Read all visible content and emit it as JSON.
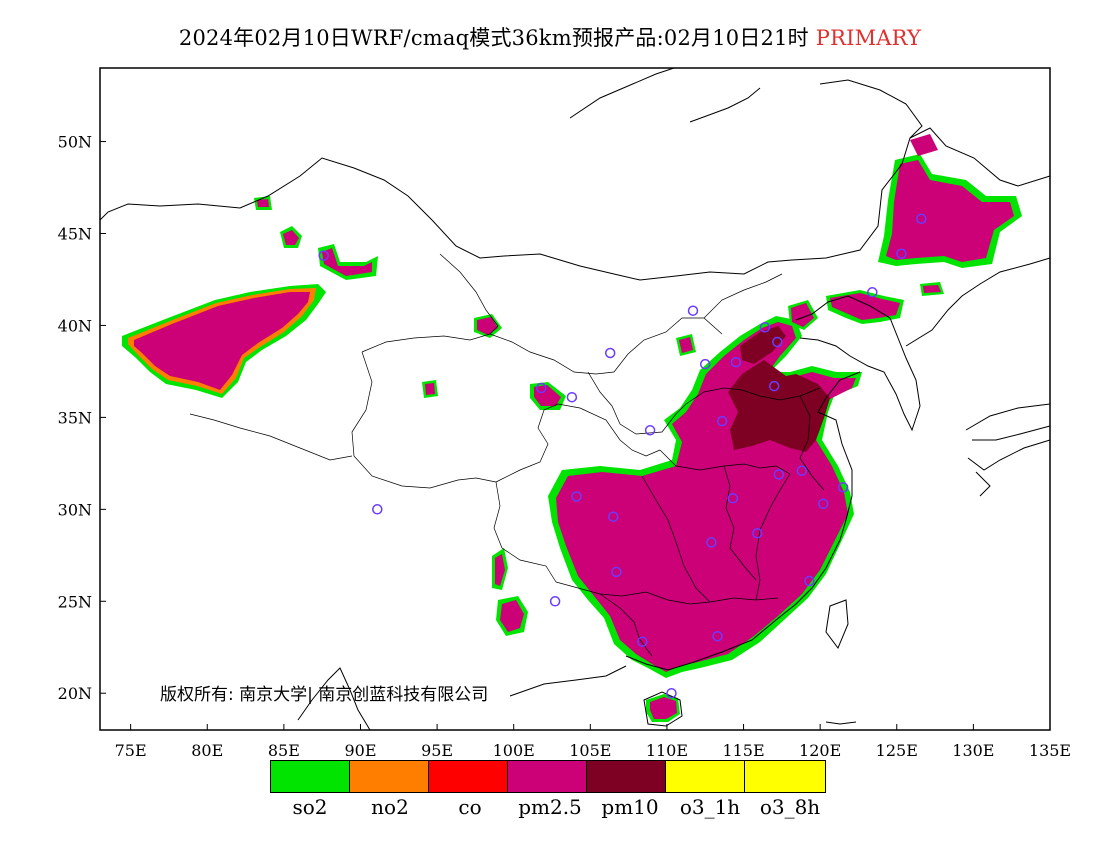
{
  "header": {
    "title_main": "2024年02月10日WRF/cmaq模式36km预报产品:02月10日21时",
    "title_tag": "PRIMARY"
  },
  "copyright": "版权所有: 南京大学| 南京创蓝科技有限公司",
  "axes": {
    "x_ticks": [
      "75E",
      "80E",
      "85E",
      "90E",
      "95E",
      "100E",
      "105E",
      "110E",
      "115E",
      "120E",
      "125E",
      "130E",
      "135E"
    ],
    "y_ticks": [
      "20N",
      "25N",
      "30N",
      "35N",
      "40N",
      "45N",
      "50N"
    ]
  },
  "legend": [
    {
      "label": "so2",
      "color": "#00e400"
    },
    {
      "label": "no2",
      "color": "#ff7e00"
    },
    {
      "label": "co",
      "color": "#ff0000"
    },
    {
      "label": "pm2.5",
      "color": "#cc0077"
    },
    {
      "label": "pm10",
      "color": "#7e0023"
    },
    {
      "label": "o3_1h",
      "color": "#ffff00"
    },
    {
      "label": "o3_8h",
      "color": "#ffff00"
    }
  ],
  "map": {
    "lon_range": [
      73,
      135
    ],
    "lat_range": [
      18,
      54
    ],
    "primary_pollutant_regions": [
      {
        "name": "Tarim basin",
        "pollutant": "pm2.5"
      },
      {
        "name": "Northeast plain",
        "pollutant": "pm2.5"
      },
      {
        "name": "Eastern and southern China",
        "pollutant": "pm2.5"
      },
      {
        "name": "North China plain core",
        "pollutant": "pm10"
      }
    ],
    "stations": [
      {
        "lon": 91.1,
        "lat": 30.0
      },
      {
        "lon": 87.6,
        "lat": 43.8
      },
      {
        "lon": 101.8,
        "lat": 36.6
      },
      {
        "lon": 103.8,
        "lat": 36.1
      },
      {
        "lon": 106.3,
        "lat": 38.5
      },
      {
        "lon": 111.7,
        "lat": 40.8
      },
      {
        "lon": 112.5,
        "lat": 37.9
      },
      {
        "lon": 114.5,
        "lat": 38.0
      },
      {
        "lon": 116.4,
        "lat": 39.9
      },
      {
        "lon": 117.2,
        "lat": 39.1
      },
      {
        "lon": 117.0,
        "lat": 36.7
      },
      {
        "lon": 113.6,
        "lat": 34.8
      },
      {
        "lon": 108.9,
        "lat": 34.3
      },
      {
        "lon": 117.3,
        "lat": 31.9
      },
      {
        "lon": 118.8,
        "lat": 32.1
      },
      {
        "lon": 121.5,
        "lat": 31.2
      },
      {
        "lon": 120.2,
        "lat": 30.3
      },
      {
        "lon": 114.3,
        "lat": 30.6
      },
      {
        "lon": 112.9,
        "lat": 28.2
      },
      {
        "lon": 115.9,
        "lat": 28.7
      },
      {
        "lon": 119.3,
        "lat": 26.1
      },
      {
        "lon": 113.3,
        "lat": 23.1
      },
      {
        "lon": 110.3,
        "lat": 20.0
      },
      {
        "lon": 108.4,
        "lat": 22.8
      },
      {
        "lon": 106.7,
        "lat": 26.6
      },
      {
        "lon": 106.5,
        "lat": 29.6
      },
      {
        "lon": 104.1,
        "lat": 30.7
      },
      {
        "lon": 102.7,
        "lat": 25.0
      },
      {
        "lon": 123.4,
        "lat": 41.8
      },
      {
        "lon": 125.3,
        "lat": 43.9
      },
      {
        "lon": 126.6,
        "lat": 45.8
      }
    ]
  }
}
